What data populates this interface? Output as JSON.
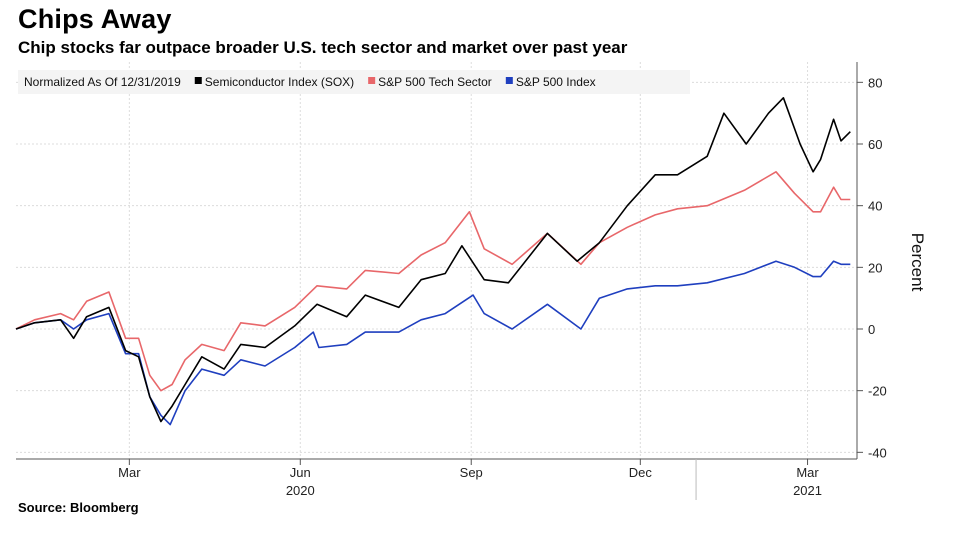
{
  "title": "Chips Away",
  "subtitle": "Chip stocks far outpace broader U.S. tech sector and market over past year",
  "source": "Source: Bloomberg",
  "chart_data": {
    "type": "line",
    "legend_note": "Normalized As Of 12/31/2019",
    "ylabel": "Percent",
    "ylim": [
      -40,
      85
    ],
    "xlim": [
      "2019-12-31",
      "2021-03-26"
    ],
    "yticks": [
      80,
      60,
      40,
      20,
      0,
      -20,
      -40
    ],
    "yticks_labels": [
      "80",
      "60",
      "40",
      "20",
      "0",
      "-20",
      "-40"
    ],
    "xticks": [
      {
        "date": "2020-03-01",
        "label": "Mar"
      },
      {
        "date": "2020-06-01",
        "label": "Jun"
      },
      {
        "date": "2020-09-01",
        "label": "Sep"
      },
      {
        "date": "2020-12-01",
        "label": "Dec"
      },
      {
        "date": "2021-03-01",
        "label": "Mar"
      }
    ],
    "year_labels": [
      {
        "date": "2020-06-01",
        "label": "2020"
      },
      {
        "date": "2021-03-01",
        "label": "2021"
      }
    ],
    "grid": true,
    "legend_position": "top-left",
    "series": [
      {
        "name": "Semiconductor Index (SOX)",
        "color": "#000000",
        "points": [
          [
            "2019-12-31",
            0
          ],
          [
            "2020-01-10",
            2
          ],
          [
            "2020-01-24",
            3
          ],
          [
            "2020-01-31",
            -3
          ],
          [
            "2020-02-07",
            4
          ],
          [
            "2020-02-19",
            7
          ],
          [
            "2020-02-28",
            -7
          ],
          [
            "2020-03-06",
            -9
          ],
          [
            "2020-03-12",
            -22
          ],
          [
            "2020-03-18",
            -30
          ],
          [
            "2020-03-24",
            -25
          ],
          [
            "2020-03-31",
            -18
          ],
          [
            "2020-04-09",
            -9
          ],
          [
            "2020-04-21",
            -13
          ],
          [
            "2020-04-30",
            -5
          ],
          [
            "2020-05-13",
            -6
          ],
          [
            "2020-05-29",
            1
          ],
          [
            "2020-06-10",
            8
          ],
          [
            "2020-06-26",
            4
          ],
          [
            "2020-07-06",
            11
          ],
          [
            "2020-07-24",
            7
          ],
          [
            "2020-08-05",
            16
          ],
          [
            "2020-08-18",
            18
          ],
          [
            "2020-08-27",
            27
          ],
          [
            "2020-09-08",
            16
          ],
          [
            "2020-09-21",
            15
          ],
          [
            "2020-10-12",
            31
          ],
          [
            "2020-10-28",
            22
          ],
          [
            "2020-11-09",
            28
          ],
          [
            "2020-11-24",
            40
          ],
          [
            "2020-12-09",
            50
          ],
          [
            "2020-12-21",
            50
          ],
          [
            "2021-01-06",
            56
          ],
          [
            "2021-01-15",
            70
          ],
          [
            "2021-01-27",
            60
          ],
          [
            "2021-02-08",
            70
          ],
          [
            "2021-02-16",
            75
          ],
          [
            "2021-02-25",
            60
          ],
          [
            "2021-03-04",
            51
          ],
          [
            "2021-03-08",
            55
          ],
          [
            "2021-03-15",
            68
          ],
          [
            "2021-03-19",
            61
          ],
          [
            "2021-03-24",
            64
          ]
        ]
      },
      {
        "name": "S&P 500 Tech Sector",
        "color": "#e8676a",
        "points": [
          [
            "2019-12-31",
            0
          ],
          [
            "2020-01-10",
            3
          ],
          [
            "2020-01-24",
            5
          ],
          [
            "2020-01-31",
            3
          ],
          [
            "2020-02-07",
            9
          ],
          [
            "2020-02-19",
            12
          ],
          [
            "2020-02-28",
            -3
          ],
          [
            "2020-03-06",
            -3
          ],
          [
            "2020-03-12",
            -15
          ],
          [
            "2020-03-18",
            -20
          ],
          [
            "2020-03-24",
            -18
          ],
          [
            "2020-03-31",
            -10
          ],
          [
            "2020-04-09",
            -5
          ],
          [
            "2020-04-21",
            -7
          ],
          [
            "2020-04-30",
            2
          ],
          [
            "2020-05-13",
            1
          ],
          [
            "2020-05-29",
            7
          ],
          [
            "2020-06-10",
            14
          ],
          [
            "2020-06-26",
            13
          ],
          [
            "2020-07-06",
            19
          ],
          [
            "2020-07-24",
            18
          ],
          [
            "2020-08-05",
            24
          ],
          [
            "2020-08-18",
            28
          ],
          [
            "2020-08-31",
            38
          ],
          [
            "2020-09-08",
            26
          ],
          [
            "2020-09-23",
            21
          ],
          [
            "2020-10-12",
            31
          ],
          [
            "2020-10-30",
            21
          ],
          [
            "2020-11-09",
            28
          ],
          [
            "2020-11-24",
            33
          ],
          [
            "2020-12-09",
            37
          ],
          [
            "2020-12-21",
            39
          ],
          [
            "2021-01-06",
            40
          ],
          [
            "2021-01-26",
            45
          ],
          [
            "2021-02-12",
            51
          ],
          [
            "2021-02-22",
            44
          ],
          [
            "2021-03-04",
            38
          ],
          [
            "2021-03-08",
            38
          ],
          [
            "2021-03-15",
            46
          ],
          [
            "2021-03-19",
            42
          ],
          [
            "2021-03-24",
            42
          ]
        ]
      },
      {
        "name": "S&P 500 Index",
        "color": "#1f3fbf",
        "points": [
          [
            "2019-12-31",
            0
          ],
          [
            "2020-01-10",
            2
          ],
          [
            "2020-01-24",
            3
          ],
          [
            "2020-01-31",
            0
          ],
          [
            "2020-02-07",
            3
          ],
          [
            "2020-02-19",
            5
          ],
          [
            "2020-02-28",
            -8
          ],
          [
            "2020-03-06",
            -8
          ],
          [
            "2020-03-12",
            -22
          ],
          [
            "2020-03-18",
            -28
          ],
          [
            "2020-03-23",
            -31
          ],
          [
            "2020-03-31",
            -20
          ],
          [
            "2020-04-09",
            -13
          ],
          [
            "2020-04-21",
            -15
          ],
          [
            "2020-04-30",
            -10
          ],
          [
            "2020-05-13",
            -12
          ],
          [
            "2020-05-29",
            -6
          ],
          [
            "2020-06-08",
            -1
          ],
          [
            "2020-06-11",
            -6
          ],
          [
            "2020-06-26",
            -5
          ],
          [
            "2020-07-06",
            -1
          ],
          [
            "2020-07-24",
            -1
          ],
          [
            "2020-08-05",
            3
          ],
          [
            "2020-08-18",
            5
          ],
          [
            "2020-09-02",
            11
          ],
          [
            "2020-09-08",
            5
          ],
          [
            "2020-09-23",
            0
          ],
          [
            "2020-10-12",
            8
          ],
          [
            "2020-10-30",
            0
          ],
          [
            "2020-11-09",
            10
          ],
          [
            "2020-11-24",
            13
          ],
          [
            "2020-12-09",
            14
          ],
          [
            "2020-12-21",
            14
          ],
          [
            "2021-01-06",
            15
          ],
          [
            "2021-01-26",
            18
          ],
          [
            "2021-02-12",
            22
          ],
          [
            "2021-02-22",
            20
          ],
          [
            "2021-03-04",
            17
          ],
          [
            "2021-03-08",
            17
          ],
          [
            "2021-03-15",
            22
          ],
          [
            "2021-03-19",
            21
          ],
          [
            "2021-03-24",
            21
          ]
        ]
      }
    ]
  }
}
